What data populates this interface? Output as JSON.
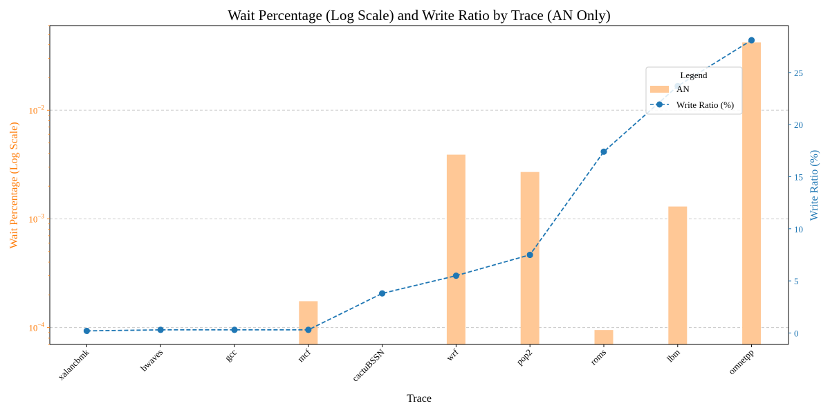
{
  "chart_data": {
    "type": "bar",
    "title": "Wait Percentage (Log Scale) and Write Ratio by Trace (AN Only)",
    "xlabel": "Trace",
    "categories": [
      "xalancbmk",
      "bwaves",
      "gcc",
      "mcf",
      "cactuBSSN",
      "wrf",
      "pop2",
      "roms",
      "lbm",
      "omnetpp"
    ],
    "left_axis": {
      "label": "Wait Percentage (Log Scale)",
      "scale": "log",
      "range": [
        7e-05,
        0.06
      ],
      "ticks": [
        0.0001,
        0.001,
        0.01
      ],
      "tick_labels": [
        {
          "base": "10",
          "exp": "−4"
        },
        {
          "base": "10",
          "exp": "−3"
        },
        {
          "base": "10",
          "exp": "−2"
        }
      ],
      "color": "#ff7f0e"
    },
    "right_axis": {
      "label": "Write Ratio (%)",
      "scale": "linear",
      "range": [
        -1.1,
        29.5
      ],
      "ticks": [
        0,
        5,
        10,
        15,
        20,
        25
      ],
      "color": "#1f77b4"
    },
    "series": [
      {
        "name": "AN",
        "kind": "bar",
        "axis": "left",
        "color": "#ffc896",
        "values": [
          null,
          null,
          null,
          0.000175,
          null,
          0.0039,
          0.0027,
          9.5e-05,
          0.0013,
          0.042
        ]
      },
      {
        "name": "Write Ratio (%)",
        "kind": "line",
        "axis": "right",
        "color": "#1f77b4",
        "style": "dashed",
        "marker": "circle",
        "values": [
          0.2,
          0.3,
          0.3,
          0.3,
          3.8,
          5.5,
          7.5,
          17.4,
          23.7,
          28.1
        ]
      }
    ],
    "grid": "horizontal dashed at left-axis major ticks",
    "legend": {
      "title": "Legend",
      "position": "upper-right"
    }
  }
}
